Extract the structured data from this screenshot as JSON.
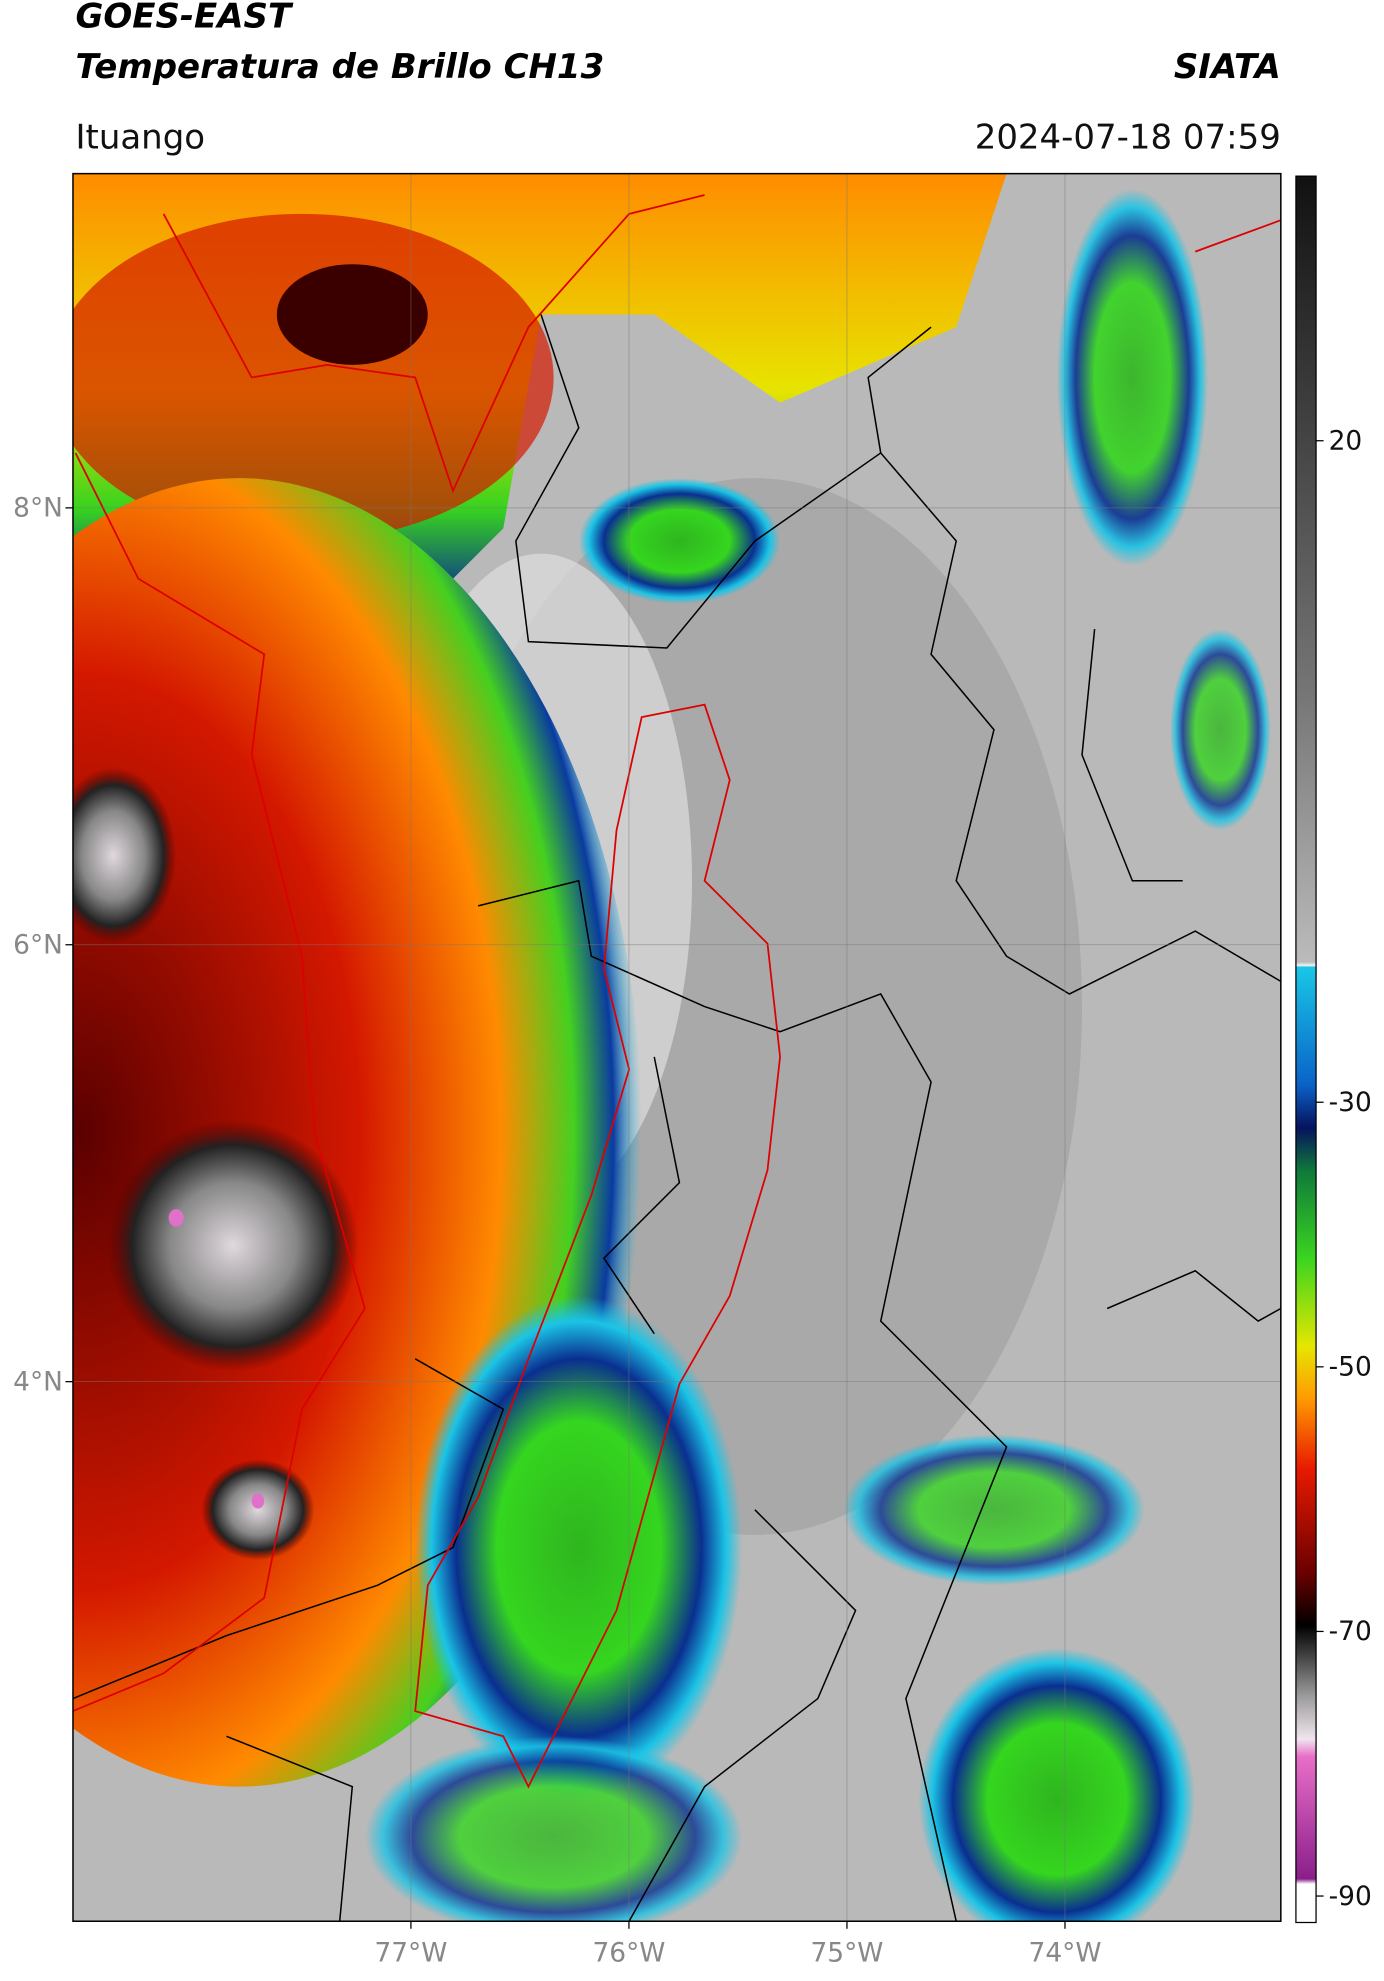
{
  "header": {
    "title_line1": "GOES-EAST",
    "title_line2": "Temperatura de Brillo CH13",
    "organization": "SIATA",
    "location": "Ituango",
    "datetime": "2024-07-18 07:59"
  },
  "map": {
    "xlim": [
      -78.55,
      -73.01
    ],
    "ylim": [
      1.53,
      9.53
    ],
    "xticks": [
      {
        "value": -77,
        "label": "77°W"
      },
      {
        "value": -76,
        "label": "76°W"
      },
      {
        "value": -75,
        "label": "75°W"
      },
      {
        "value": -74,
        "label": "74°W"
      }
    ],
    "yticks": [
      {
        "value": 8,
        "label": "8°N"
      },
      {
        "value": 6,
        "label": "6°N"
      },
      {
        "value": 4,
        "label": "4°N"
      }
    ],
    "grid": true
  },
  "colorbar": {
    "lim": [
      -92,
      40
    ],
    "ticks": [
      20,
      -30,
      -50,
      -70,
      -90
    ]
  }
}
